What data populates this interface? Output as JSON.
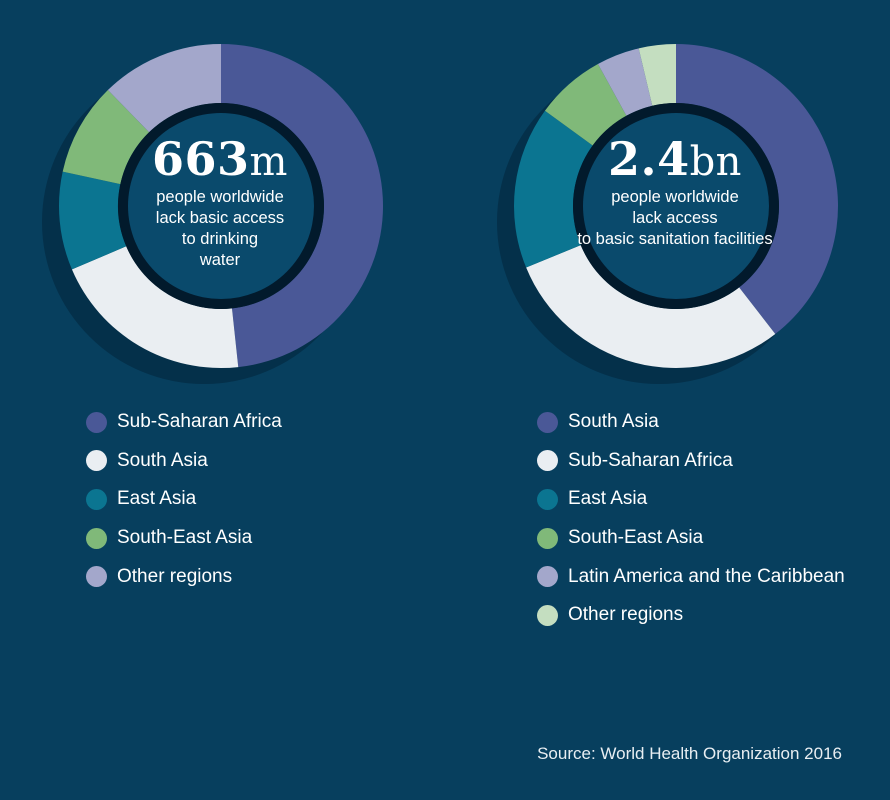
{
  "colors": {
    "background": "#073f5e",
    "shadow": "#04304a",
    "inner_disc": "#0a4a6c",
    "inner_ring": "#021a2c"
  },
  "chart_data": [
    {
      "type": "pie",
      "headline": {
        "number": "663",
        "unit": "m"
      },
      "description": [
        "people worldwide",
        "lack basic access",
        "to drinking",
        "water"
      ],
      "segments": [
        {
          "name": "Sub-Saharan Africa",
          "share": 0.483,
          "color": "#4a5897"
        },
        {
          "name": "South Asia",
          "share": 0.203,
          "color": "#eaeef2"
        },
        {
          "name": "East Asia",
          "share": 0.098,
          "color": "#0b7591"
        },
        {
          "name": "South-East Asia",
          "share": 0.093,
          "color": "#80b979"
        },
        {
          "name": "Other regions",
          "share": 0.123,
          "color": "#a3a7cb"
        }
      ]
    },
    {
      "type": "pie",
      "headline": {
        "number": "2.4",
        "unit": "bn"
      },
      "description": [
        "people worldwide",
        "lack access",
        "to basic sanitation facilities"
      ],
      "segments": [
        {
          "name": "South Asia",
          "share": 0.395,
          "color": "#4a5897"
        },
        {
          "name": "Sub-Saharan Africa",
          "share": 0.293,
          "color": "#eaeef2"
        },
        {
          "name": "East Asia",
          "share": 0.162,
          "color": "#0b7591"
        },
        {
          "name": "South-East Asia",
          "share": 0.07,
          "color": "#80b979"
        },
        {
          "name": "Latin America and the Caribbean",
          "share": 0.043,
          "color": "#a3a7cb"
        },
        {
          "name": "Other regions",
          "share": 0.037,
          "color": "#c4dec0"
        }
      ]
    }
  ],
  "source": "Source: World Health Organization 2016"
}
